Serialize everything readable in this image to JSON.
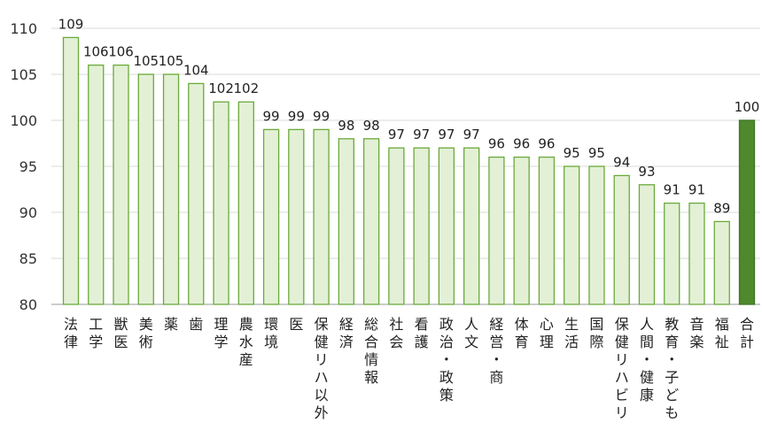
{
  "chart_data": {
    "type": "bar",
    "title": "",
    "xlabel": "",
    "ylabel": "",
    "ylim": [
      80,
      110
    ],
    "yticks": [
      80,
      85,
      90,
      95,
      100,
      105,
      110
    ],
    "grid": "horizontal",
    "categories": [
      "法律",
      "工学",
      "獣医",
      "美術",
      "薬",
      "歯",
      "理学",
      "農水産",
      "環境",
      "医",
      "保健リハ以外",
      "経済",
      "総合情報",
      "社会",
      "看護",
      "政治・政策",
      "人文",
      "経営・商",
      "体育",
      "心理",
      "生活",
      "国際",
      "保健リハビリ",
      "人間・健康",
      "教育・子ども",
      "音楽",
      "福祉",
      "合計"
    ],
    "values": [
      109,
      106,
      106,
      105,
      105,
      104,
      102,
      102,
      99,
      99,
      99,
      98,
      98,
      97,
      97,
      97,
      97,
      96,
      96,
      96,
      95,
      95,
      94,
      93,
      91,
      91,
      89,
      100
    ],
    "data_labels": [
      "109",
      "106",
      "106",
      "105",
      "105",
      "104",
      "102",
      "102",
      "99",
      "99",
      "99",
      "98",
      "98",
      "97",
      "97",
      "97",
      "97",
      "96",
      "96",
      "96",
      "95",
      "95",
      "94",
      "93",
      "91",
      "91",
      "89",
      "100"
    ],
    "colors": {
      "bar_fill": "#e3f0d6",
      "bar_stroke": "#6aaa3a",
      "total_fill": "#4e8a2d",
      "total_stroke": "#3f7423",
      "grid": "#d9d9d9",
      "baseline": "#9a9a9a"
    }
  }
}
